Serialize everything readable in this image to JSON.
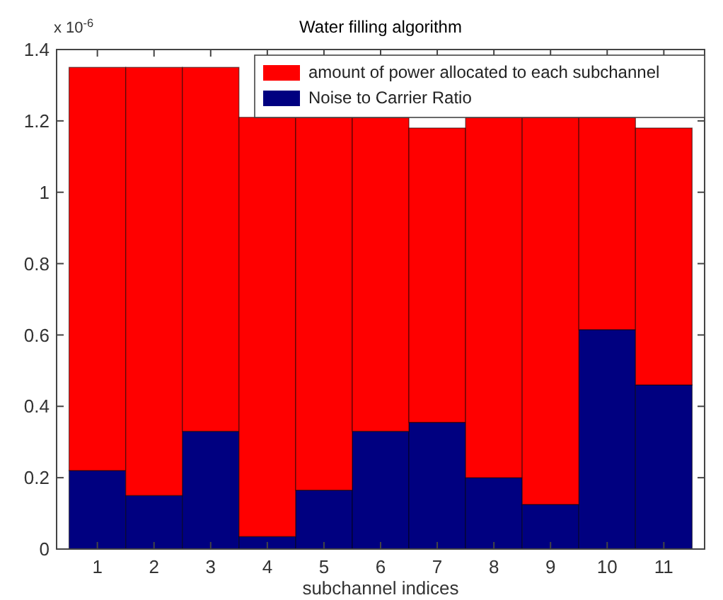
{
  "chart_data": {
    "type": "bar",
    "title": "Water filling algorithm",
    "xlabel": "subchannel indices",
    "annotations": [
      "x 10$^{-6}$"
    ],
    "categories": [
      "1",
      "2",
      "3",
      "4",
      "5",
      "6",
      "7",
      "8",
      "9",
      "10",
      "11"
    ],
    "stacked": true,
    "series": [
      {
        "name": "Noise to Carrier Ratio",
        "color": "#000080",
        "values": [
          0.22,
          0.15,
          0.33,
          0.035,
          0.165,
          0.33,
          0.355,
          0.2,
          0.125,
          0.615,
          0.46
        ]
      },
      {
        "name": "amount of power allocated to each subchannel",
        "color": "#ff0000",
        "values": [
          1.13,
          1.2,
          1.02,
          1.175,
          1.045,
          0.88,
          0.825,
          1.01,
          1.085,
          0.595,
          0.72
        ]
      }
    ],
    "ylim": [
      0,
      1.4
    ],
    "yticks": [
      0,
      0.2,
      0.4,
      0.6,
      0.8,
      1,
      1.2,
      1.4
    ],
    "grid": false,
    "legend": "top right"
  }
}
